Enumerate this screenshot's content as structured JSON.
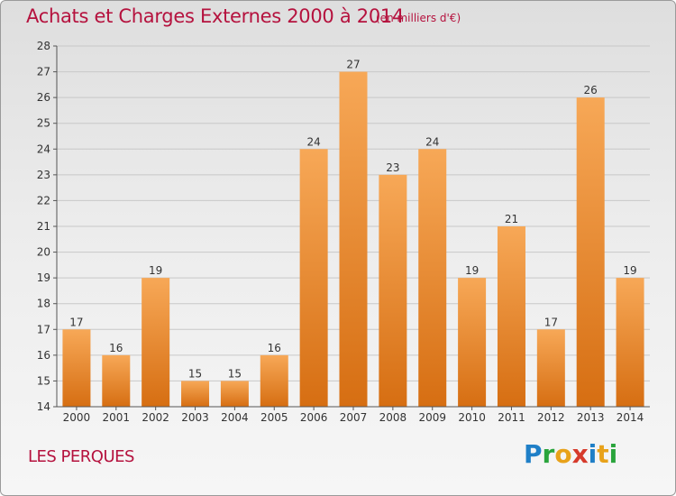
{
  "header": {
    "title": "Achats et Charges Externes 2000 à 2014",
    "subtitle": "(en milliers d'€)"
  },
  "footer": {
    "commune": "LES PERQUES",
    "logo_letters": [
      "P",
      "r",
      "o",
      "x",
      "i",
      "t",
      "i"
    ],
    "logo_colors": [
      "#1f7fc7",
      "#2aa43c",
      "#e8a21a",
      "#d63a2b",
      "#1f7fc7",
      "#e8a21a",
      "#2aa43c"
    ]
  },
  "colors": {
    "bar_light": "#f7a857",
    "bar_dark": "#d66e12",
    "grid": "#c8c8c8",
    "axis": "#555555",
    "title": "#b5123e"
  },
  "chart_data": {
    "type": "bar",
    "categories": [
      "2000",
      "2001",
      "2002",
      "2003",
      "2004",
      "2005",
      "2006",
      "2007",
      "2008",
      "2009",
      "2010",
      "2011",
      "2012",
      "2013",
      "2014"
    ],
    "values": [
      17,
      16,
      19,
      15,
      15,
      16,
      24,
      27,
      23,
      24,
      19,
      21,
      17,
      26,
      19
    ],
    "ylim": [
      14,
      28
    ],
    "yticks": [
      14,
      15,
      16,
      17,
      18,
      19,
      20,
      21,
      22,
      23,
      24,
      25,
      26,
      27,
      28
    ],
    "grid": true,
    "xlabel": "",
    "ylabel": ""
  }
}
